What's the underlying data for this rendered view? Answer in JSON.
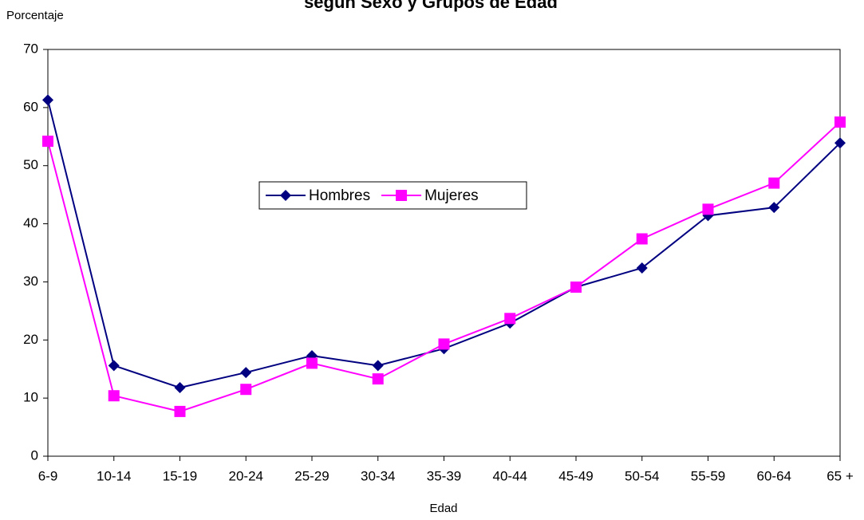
{
  "chart_data": {
    "type": "line",
    "title": "según Sexo y Grupos de Edad",
    "y_label": "Porcentaje",
    "x_label": "Edad",
    "categories": [
      "6-9",
      "10-14",
      "15-19",
      "20-24",
      "25-29",
      "30-34",
      "35-39",
      "40-44",
      "45-49",
      "50-54",
      "55-59",
      "60-64",
      "65 +"
    ],
    "series": [
      {
        "name": "Hombres",
        "color": "#000080",
        "marker": "diamond",
        "values": [
          61.3,
          15.6,
          11.8,
          14.4,
          17.3,
          15.6,
          18.5,
          22.9,
          29.1,
          32.4,
          41.4,
          42.8,
          53.9
        ]
      },
      {
        "name": "Mujeres",
        "color": "#ff00ff",
        "marker": "square",
        "values": [
          54.2,
          10.4,
          7.7,
          11.5,
          16.0,
          13.3,
          19.3,
          23.7,
          29.1,
          37.4,
          42.5,
          47.0,
          57.5
        ]
      }
    ],
    "ylim": [
      0,
      70
    ],
    "yticks": [
      0,
      10,
      20,
      30,
      40,
      50,
      60,
      70
    ],
    "grid": false,
    "legend_position": "center"
  }
}
